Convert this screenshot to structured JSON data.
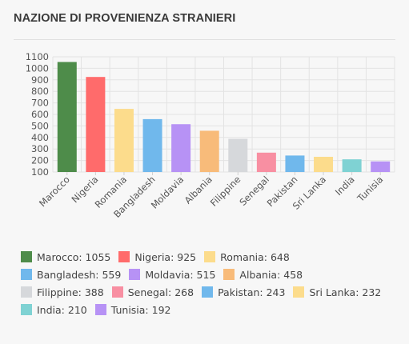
{
  "header": {
    "title": "NAZIONE DI PROVENIENZA STRANIERI"
  },
  "chart_data": {
    "type": "bar",
    "title": "NAZIONE DI PROVENIENZA STRANIERI",
    "xlabel": "",
    "ylabel": "",
    "ylim": [
      100,
      1100
    ],
    "yticks": [
      100,
      200,
      300,
      400,
      500,
      600,
      700,
      800,
      900,
      1000,
      1100
    ],
    "grid": true,
    "legend_position": "bottom",
    "categories": [
      "Marocco",
      "Nigeria",
      "Romania",
      "Bangladesh",
      "Moldavia",
      "Albania",
      "Filippine",
      "Senegal",
      "Pakistan",
      "Sri Lanka",
      "India",
      "Tunisia"
    ],
    "values": [
      1055,
      925,
      648,
      559,
      515,
      458,
      388,
      268,
      243,
      232,
      210,
      192
    ],
    "colors": [
      "#4e8c4a",
      "#ff6b6b",
      "#fcdc8c",
      "#70b8ec",
      "#b792f5",
      "#f8bb7a",
      "#d6d8db",
      "#f88fa2",
      "#70b8ec",
      "#fcdc8c",
      "#7fd2d3",
      "#b792f5"
    ]
  },
  "legend": [
    {
      "text": "Marocco: 1055",
      "color": "#4e8c4a"
    },
    {
      "text": "Nigeria: 925",
      "color": "#ff6b6b"
    },
    {
      "text": "Romania: 648",
      "color": "#fcdc8c"
    },
    {
      "text": "Bangladesh: 559",
      "color": "#70b8ec"
    },
    {
      "text": "Moldavia: 515",
      "color": "#b792f5"
    },
    {
      "text": "Albania: 458",
      "color": "#f8bb7a"
    },
    {
      "text": "Filippine: 388",
      "color": "#d6d8db"
    },
    {
      "text": "Senegal: 268",
      "color": "#f88fa2"
    },
    {
      "text": "Pakistan: 243",
      "color": "#70b8ec"
    },
    {
      "text": "Sri Lanka: 232",
      "color": "#fcdc8c"
    },
    {
      "text": "India: 210",
      "color": "#7fd2d3"
    },
    {
      "text": "Tunisia: 192",
      "color": "#b792f5"
    }
  ]
}
